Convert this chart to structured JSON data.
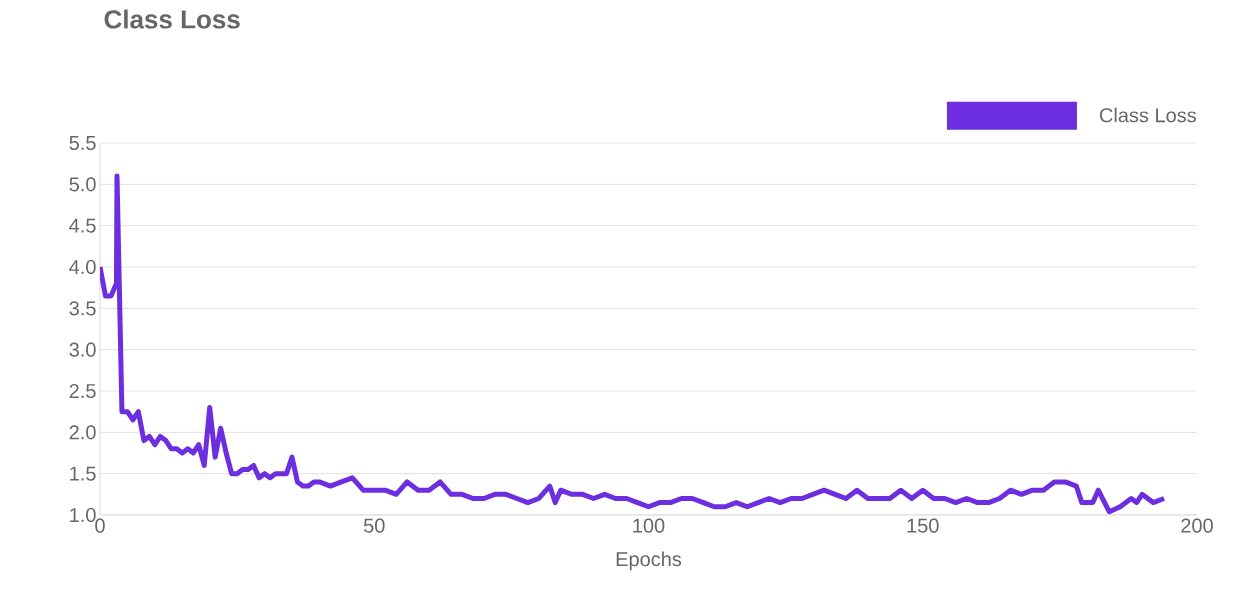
{
  "chart_data": {
    "type": "line",
    "title": "Class Loss",
    "xlabel": "Epochs",
    "x": [
      0,
      1,
      2,
      3,
      3.1,
      4,
      5,
      6,
      7,
      8,
      9,
      10,
      11,
      12,
      13,
      14,
      15,
      16,
      17,
      18,
      19,
      20,
      21,
      22,
      23,
      24,
      25,
      26,
      27,
      28,
      29,
      30,
      31,
      32,
      33,
      34,
      35,
      36,
      37,
      38,
      39,
      40,
      42,
      44,
      46,
      48,
      50,
      52,
      54,
      56,
      58,
      60,
      62,
      64,
      66,
      68,
      70,
      72,
      74,
      76,
      78,
      80,
      82,
      83,
      84,
      86,
      88,
      90,
      92,
      94,
      96,
      98,
      100,
      102,
      104,
      106,
      108,
      110,
      112,
      114,
      116,
      118,
      120,
      122,
      124,
      126,
      128,
      130,
      132,
      134,
      136,
      138,
      140,
      142,
      144,
      146,
      148,
      150,
      152,
      154,
      156,
      158,
      160,
      162,
      164,
      166,
      168,
      170,
      172,
      174,
      176,
      178,
      179,
      181,
      182,
      184,
      186,
      188,
      189,
      190,
      192,
      194
    ],
    "series": [
      {
        "name": "Class Loss",
        "color": "#6d2ee0",
        "values": [
          4.0,
          3.65,
          3.65,
          3.8,
          5.1,
          2.25,
          2.25,
          2.15,
          2.25,
          1.9,
          1.95,
          1.85,
          1.95,
          1.9,
          1.8,
          1.8,
          1.75,
          1.8,
          1.75,
          1.85,
          1.6,
          2.3,
          1.7,
          2.05,
          1.75,
          1.5,
          1.5,
          1.55,
          1.55,
          1.6,
          1.45,
          1.5,
          1.45,
          1.5,
          1.5,
          1.5,
          1.7,
          1.4,
          1.35,
          1.35,
          1.4,
          1.4,
          1.35,
          1.4,
          1.45,
          1.3,
          1.3,
          1.3,
          1.25,
          1.4,
          1.3,
          1.3,
          1.4,
          1.25,
          1.25,
          1.2,
          1.2,
          1.25,
          1.25,
          1.2,
          1.15,
          1.2,
          1.35,
          1.15,
          1.3,
          1.25,
          1.25,
          1.2,
          1.25,
          1.2,
          1.2,
          1.15,
          1.1,
          1.15,
          1.15,
          1.2,
          1.2,
          1.15,
          1.1,
          1.1,
          1.15,
          1.1,
          1.15,
          1.2,
          1.15,
          1.2,
          1.2,
          1.25,
          1.3,
          1.25,
          1.2,
          1.3,
          1.2,
          1.2,
          1.2,
          1.3,
          1.2,
          1.3,
          1.2,
          1.2,
          1.15,
          1.2,
          1.15,
          1.15,
          1.2,
          1.3,
          1.25,
          1.3,
          1.3,
          1.4,
          1.4,
          1.35,
          1.15,
          1.15,
          1.3,
          1.04,
          1.1,
          1.2,
          1.15,
          1.25,
          1.15,
          1.2
        ]
      }
    ],
    "xlim": [
      0,
      200
    ],
    "xticks": [
      0,
      50,
      100,
      150,
      200
    ],
    "ylim": [
      1.0,
      5.5
    ],
    "yticks": [
      {
        "value": 1.0,
        "label": "1.0"
      },
      {
        "value": 1.5,
        "label": "1.5"
      },
      {
        "value": 2.0,
        "label": "2.0"
      },
      {
        "value": 2.5,
        "label": "2.5"
      },
      {
        "value": 3.0,
        "label": "3.0"
      },
      {
        "value": 3.5,
        "label": "3.5"
      },
      {
        "value": 4.0,
        "label": "4.0"
      },
      {
        "value": 4.5,
        "label": "4.5"
      },
      {
        "value": 5.0,
        "label": "5.0"
      },
      {
        "value": 5.5,
        "label": "5.5"
      }
    ],
    "grid": "y",
    "legend": "top right",
    "marker": "none",
    "line_style": "solid"
  }
}
